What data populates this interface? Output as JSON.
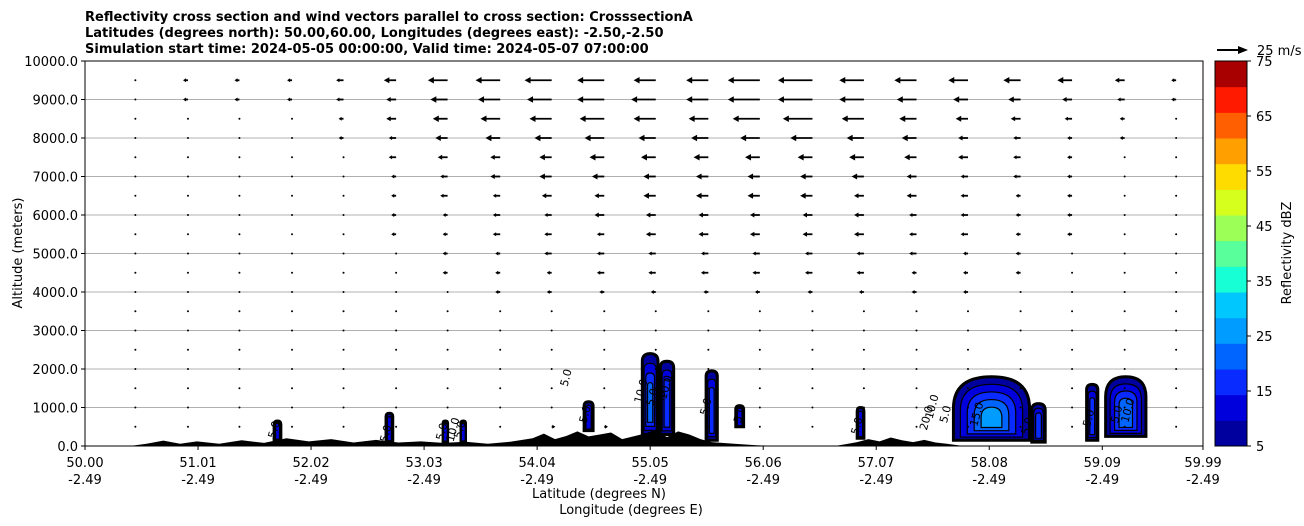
{
  "chart_data": {
    "type": "heatmap",
    "title_lines": [
      "Reflectivity cross section and wind vectors parallel to cross section: CrosssectionA",
      "Latitudes (degrees north): 50.00,60.00, Longitudes (degrees east): -2.50,-2.50",
      "Simulation start time: 2024-05-05 00:00:00, Valid time: 2024-05-07 07:00:00"
    ],
    "ylabel": "Altitude (meters)",
    "xlabel_lat": "Latitude (degrees N)",
    "xlabel_lon": "Longitude (degrees E)",
    "xlim": [
      50.0,
      59.99
    ],
    "ylim": [
      0,
      10000
    ],
    "grid": "horizontal",
    "x_ticks": [
      {
        "value": 50.0,
        "lat": "50.00",
        "lon": "-2.49"
      },
      {
        "value": 51.01,
        "lat": "51.01",
        "lon": "-2.49"
      },
      {
        "value": 52.02,
        "lat": "52.02",
        "lon": "-2.49"
      },
      {
        "value": 53.03,
        "lat": "53.03",
        "lon": "-2.49"
      },
      {
        "value": 54.04,
        "lat": "54.04",
        "lon": "-2.49"
      },
      {
        "value": 55.05,
        "lat": "55.05",
        "lon": "-2.49"
      },
      {
        "value": 56.06,
        "lat": "56.06",
        "lon": "-2.49"
      },
      {
        "value": 57.07,
        "lat": "57.07",
        "lon": "-2.49"
      },
      {
        "value": 58.08,
        "lat": "58.08",
        "lon": "-2.49"
      },
      {
        "value": 59.09,
        "lat": "59.09",
        "lon": "-2.49"
      },
      {
        "value": 59.99,
        "lat": "59.99",
        "lon": "-2.49"
      }
    ],
    "y_ticks": [
      {
        "value": 0,
        "label": "0.0"
      },
      {
        "value": 1000,
        "label": "1000.0"
      },
      {
        "value": 2000,
        "label": "2000.0"
      },
      {
        "value": 3000,
        "label": "3000.0"
      },
      {
        "value": 4000,
        "label": "4000.0"
      },
      {
        "value": 5000,
        "label": "5000.0"
      },
      {
        "value": 6000,
        "label": "6000.0"
      },
      {
        "value": 7000,
        "label": "7000.0"
      },
      {
        "value": 8000,
        "label": "8000.0"
      },
      {
        "value": 9000,
        "label": "9000.0"
      },
      {
        "value": 10000,
        "label": "10000.0"
      }
    ],
    "colorbar": {
      "label": "Reflectivity dBZ",
      "min": 5,
      "max": 75,
      "tick_values": [
        5,
        15,
        25,
        35,
        45,
        55,
        65,
        75
      ],
      "tick_labels": [
        "5",
        "15",
        "25",
        "35",
        "45",
        "55",
        "65",
        "75"
      ],
      "level_colors": [
        "#00009f",
        "#0000dd",
        "#0a2bff",
        "#0064ff",
        "#009cff",
        "#00c8ff",
        "#17ffd4",
        "#58ff9a",
        "#9cff58",
        "#d6ff1e",
        "#ffdc00",
        "#ffa000",
        "#ff5f00",
        "#ff1a00",
        "#a80000"
      ]
    },
    "wind_key": {
      "label": "25 m/s",
      "speed": 25
    },
    "wind_barbs": {
      "x_values": [
        50.45,
        50.92,
        51.38,
        51.85,
        52.31,
        52.78,
        53.24,
        53.71,
        54.17,
        54.64,
        55.1,
        55.57,
        56.03,
        56.5,
        56.96,
        57.43,
        57.89,
        58.36,
        58.82,
        59.29,
        59.75
      ],
      "rows": [
        {
          "alt": 9500,
          "u": [
            -0.6,
            -2,
            -2,
            -2,
            -3,
            -5,
            -8,
            -10,
            -11,
            -11,
            -9,
            -9,
            -13,
            -14,
            -10,
            -9,
            -8,
            -7,
            -6,
            -4,
            -2
          ]
        },
        {
          "alt": 9000,
          "u": [
            -0.6,
            -2,
            -2,
            -2,
            -3,
            -4,
            -7,
            -9,
            -10,
            -11,
            -10,
            -9,
            -13,
            -14,
            -10,
            -8,
            -6,
            -5,
            -4,
            -3,
            -2
          ]
        },
        {
          "alt": 8500,
          "u": [
            -0.6,
            -1,
            -1,
            -1,
            -2,
            -4,
            -6,
            -8,
            -9,
            -10,
            -9,
            -8,
            -11,
            -12,
            -9,
            -7,
            -5,
            -4,
            -3,
            -2,
            -1
          ]
        },
        {
          "alt": 8000,
          "u": [
            -0.5,
            -1,
            -1,
            -1,
            -2,
            -3,
            -5,
            -6,
            -7,
            -8,
            -7,
            -7,
            -8,
            -9,
            -7,
            -6,
            -4,
            -3,
            -2,
            -2,
            -1
          ]
        },
        {
          "alt": 7500,
          "u": [
            -0.5,
            -1,
            -1,
            -1,
            -1,
            -3,
            -4,
            -4,
            -5,
            -6,
            -6,
            -6,
            -6,
            -6,
            -6,
            -5,
            -4,
            -3,
            -2,
            -1,
            -1
          ]
        },
        {
          "alt": 7000,
          "u": [
            -0.5,
            -1,
            -1,
            -1,
            -1,
            -2,
            -3,
            -4,
            -5,
            -5,
            -5,
            -5,
            -5,
            -5,
            -5,
            -4,
            -3,
            -3,
            -2,
            -1,
            -1
          ]
        },
        {
          "alt": 6500,
          "u": [
            -0.5,
            -1,
            -1,
            -1,
            -1,
            -2,
            -3,
            -3,
            -4,
            -4,
            -5,
            -5,
            -5,
            -5,
            -4,
            -4,
            -3,
            -2,
            -2,
            -1,
            -1
          ]
        },
        {
          "alt": 6000,
          "u": [
            -0.5,
            -1,
            -1,
            -1,
            -1,
            -2,
            -2,
            -3,
            -3,
            -4,
            -4,
            -4,
            -4,
            -4,
            -4,
            -3,
            -3,
            -2,
            -2,
            -1,
            -1
          ]
        },
        {
          "alt": 5500,
          "u": [
            -0.5,
            -1,
            -1,
            -1,
            -1,
            -2,
            -2,
            -3,
            -3,
            -3,
            -4,
            -4,
            -4,
            -4,
            -4,
            -3,
            -3,
            -2,
            -2,
            -1,
            -1
          ]
        },
        {
          "alt": 5000,
          "u": [
            -0.5,
            -1,
            -1,
            -1,
            -1,
            -1,
            -2,
            -2,
            -3,
            -3,
            -3,
            -3,
            -3,
            -3,
            -3,
            -3,
            -2,
            -2,
            -1,
            -1,
            -1
          ]
        },
        {
          "alt": 4500,
          "u": [
            -0.5,
            -1,
            -1,
            -1,
            -1,
            -1,
            -2,
            -2,
            -2,
            -3,
            -3,
            -3,
            -3,
            -3,
            -3,
            -2,
            -2,
            -2,
            -1,
            -1,
            -1
          ]
        },
        {
          "alt": 4000,
          "u": [
            -0.5,
            -0.5,
            -1,
            -1,
            -1,
            -1,
            -1,
            -2,
            -2,
            -2,
            -2,
            -2,
            -2,
            -2,
            -2,
            -2,
            -2,
            -1,
            -1,
            -1,
            -1
          ]
        },
        {
          "alt": 3500,
          "u": [
            -0.5,
            -0.5,
            -0.5,
            -0.5,
            -1,
            -1,
            -1,
            -1,
            -1,
            -1,
            -1,
            -1,
            -1,
            -1,
            -1,
            -1,
            -1,
            -1,
            -1,
            -0.5,
            -0.5
          ]
        },
        {
          "alt": 3000,
          "u": [
            -0.5,
            -0.5,
            -0.5,
            -0.5,
            -0.5,
            -0.5,
            -0.5,
            -0.5,
            -0.5,
            -0.5,
            -0.5,
            -0.5,
            -0.5,
            -0.5,
            -0.5,
            -0.5,
            -0.5,
            -0.5,
            -0.5,
            -0.5,
            -0.5
          ]
        },
        {
          "alt": 2500,
          "u": [
            -0.5,
            -0.5,
            -0.5,
            -0.5,
            -0.5,
            -0.5,
            -0.5,
            -0.5,
            -0.5,
            -0.5,
            -0.5,
            -0.5,
            -0.5,
            -0.5,
            -0.5,
            -0.5,
            -0.5,
            -0.5,
            -0.5,
            -0.5,
            -0.5
          ]
        },
        {
          "alt": 2000,
          "u": [
            -0.5,
            -0.5,
            -0.5,
            -0.5,
            -0.5,
            -0.5,
            -0.5,
            -0.5,
            -0.5,
            -0.5,
            -0.5,
            -0.5,
            -0.5,
            -0.5,
            -0.5,
            -0.5,
            -0.5,
            -0.5,
            -0.5,
            -0.5,
            -0.5
          ]
        },
        {
          "alt": 1500,
          "u": [
            0.5,
            0.5,
            0.5,
            0.5,
            0.5,
            0.5,
            0.5,
            0.5,
            0.5,
            0.5,
            0.5,
            0.5,
            0.5,
            0.5,
            0.5,
            0.5,
            0.5,
            0.5,
            0.5,
            0.5,
            0.5
          ]
        },
        {
          "alt": 1000,
          "u": [
            0.5,
            0.5,
            0.5,
            0.5,
            0.5,
            0.5,
            0.5,
            0.5,
            0.5,
            1,
            1,
            1,
            1,
            1,
            0.5,
            0.5,
            0.5,
            0.5,
            0.5,
            0.5,
            0.5
          ]
        },
        {
          "alt": 500,
          "u": [
            0.5,
            0.5,
            0.5,
            0.5,
            0.5,
            0.5,
            0.5,
            1,
            1.5,
            1.5,
            1.5,
            1,
            1,
            1,
            0.5,
            0.5,
            0.5,
            0.5,
            0.5,
            0.5,
            0.5
          ]
        }
      ]
    },
    "terrain": [
      [
        50.0,
        0
      ],
      [
        50.4,
        0
      ],
      [
        50.55,
        60
      ],
      [
        50.7,
        140
      ],
      [
        50.85,
        60
      ],
      [
        51.0,
        120
      ],
      [
        51.2,
        60
      ],
      [
        51.4,
        150
      ],
      [
        51.6,
        80
      ],
      [
        51.8,
        200
      ],
      [
        52.0,
        120
      ],
      [
        52.2,
        180
      ],
      [
        52.4,
        90
      ],
      [
        52.6,
        160
      ],
      [
        52.8,
        90
      ],
      [
        53.0,
        120
      ],
      [
        53.2,
        80
      ],
      [
        53.4,
        110
      ],
      [
        53.6,
        60
      ],
      [
        53.8,
        110
      ],
      [
        54.0,
        200
      ],
      [
        54.1,
        320
      ],
      [
        54.2,
        180
      ],
      [
        54.3,
        260
      ],
      [
        54.4,
        380
      ],
      [
        54.5,
        250
      ],
      [
        54.6,
        300
      ],
      [
        54.7,
        350
      ],
      [
        54.8,
        180
      ],
      [
        54.9,
        250
      ],
      [
        55.0,
        320
      ],
      [
        55.1,
        420
      ],
      [
        55.2,
        230
      ],
      [
        55.3,
        380
      ],
      [
        55.4,
        300
      ],
      [
        55.5,
        180
      ],
      [
        55.6,
        100
      ],
      [
        55.8,
        60
      ],
      [
        56.0,
        20
      ],
      [
        56.2,
        0
      ],
      [
        56.7,
        0
      ],
      [
        56.8,
        50
      ],
      [
        56.9,
        100
      ],
      [
        57.0,
        180
      ],
      [
        57.1,
        120
      ],
      [
        57.2,
        220
      ],
      [
        57.3,
        150
      ],
      [
        57.4,
        100
      ],
      [
        57.5,
        160
      ],
      [
        57.6,
        90
      ],
      [
        57.7,
        60
      ],
      [
        57.85,
        0
      ],
      [
        59.99,
        0
      ]
    ],
    "reflectivity_cells": [
      {
        "x": 51.72,
        "base": 150,
        "top": 650,
        "w": 0.06,
        "peak_dbz": 12
      },
      {
        "x": 52.72,
        "base": 100,
        "top": 850,
        "w": 0.06,
        "peak_dbz": 12
      },
      {
        "x": 53.22,
        "base": 100,
        "top": 650,
        "w": 0.04,
        "peak_dbz": 10
      },
      {
        "x": 53.38,
        "base": 100,
        "top": 650,
        "w": 0.04,
        "peak_dbz": 10
      },
      {
        "x": 54.5,
        "base": 400,
        "top": 1150,
        "w": 0.08,
        "peak_dbz": 12
      },
      {
        "x": 55.05,
        "base": 300,
        "top": 2400,
        "w": 0.14,
        "peak_dbz": 20
      },
      {
        "x": 55.2,
        "base": 300,
        "top": 2200,
        "w": 0.12,
        "peak_dbz": 18
      },
      {
        "x": 55.6,
        "base": 150,
        "top": 1950,
        "w": 0.1,
        "peak_dbz": 15
      },
      {
        "x": 55.85,
        "base": 500,
        "top": 1050,
        "w": 0.07,
        "peak_dbz": 12
      },
      {
        "x": 56.93,
        "base": 200,
        "top": 1000,
        "w": 0.06,
        "peak_dbz": 12
      },
      {
        "x": 58.1,
        "base": 150,
        "top": 1800,
        "w": 0.68,
        "peak_dbz": 25
      },
      {
        "x": 58.52,
        "base": 100,
        "top": 1100,
        "w": 0.12,
        "peak_dbz": 15
      },
      {
        "x": 59.0,
        "base": 150,
        "top": 1600,
        "w": 0.1,
        "peak_dbz": 18
      },
      {
        "x": 59.3,
        "base": 250,
        "top": 1800,
        "w": 0.36,
        "peak_dbz": 22
      }
    ],
    "contour_labels": [
      {
        "x": 51.72,
        "alt": 400,
        "text": "5.0"
      },
      {
        "x": 52.72,
        "alt": 300,
        "text": "5.0"
      },
      {
        "x": 53.22,
        "alt": 350,
        "text": "5.0"
      },
      {
        "x": 53.38,
        "alt": 400,
        "text": "5.0"
      },
      {
        "x": 53.32,
        "alt": 400,
        "text": "10.0"
      },
      {
        "x": 54.33,
        "alt": 1750,
        "text": "5.0"
      },
      {
        "x": 54.5,
        "alt": 800,
        "text": "5.0"
      },
      {
        "x": 55.0,
        "alt": 1400,
        "text": "10.0"
      },
      {
        "x": 55.1,
        "alt": 1250,
        "text": "5.0"
      },
      {
        "x": 55.17,
        "alt": 1200,
        "text": "5.0"
      },
      {
        "x": 55.22,
        "alt": 1500,
        "text": "10.0"
      },
      {
        "x": 55.58,
        "alt": 1000,
        "text": "5.0"
      },
      {
        "x": 55.88,
        "alt": 800,
        "text": "5.0"
      },
      {
        "x": 56.93,
        "alt": 500,
        "text": "5.0"
      },
      {
        "x": 57.55,
        "alt": 700,
        "text": "20.0"
      },
      {
        "x": 57.6,
        "alt": 1000,
        "text": "10.0"
      },
      {
        "x": 57.72,
        "alt": 800,
        "text": "5.0"
      },
      {
        "x": 58.0,
        "alt": 800,
        "text": "15.0"
      },
      {
        "x": 58.45,
        "alt": 500,
        "text": "5.0"
      },
      {
        "x": 59.0,
        "alt": 700,
        "text": "5.0"
      },
      {
        "x": 59.25,
        "alt": 800,
        "text": "5.0"
      },
      {
        "x": 59.35,
        "alt": 900,
        "text": "10.0"
      }
    ]
  }
}
